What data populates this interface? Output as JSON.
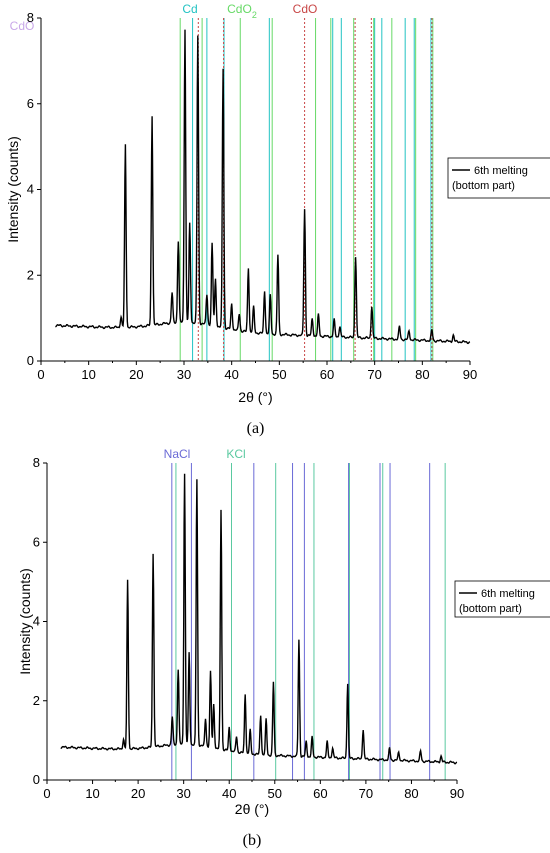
{
  "chart_data": [
    {
      "type": "line",
      "panel_label": "(a)",
      "xlabel": "2θ (°)",
      "ylabel": "Intensity (counts)",
      "xlim": [
        0,
        90
      ],
      "ylim": [
        0,
        8
      ],
      "xticks": [
        0,
        10,
        20,
        30,
        40,
        50,
        60,
        70,
        80,
        90
      ],
      "yticks": [
        0,
        2,
        4,
        6,
        8
      ],
      "legend": {
        "position": "right",
        "lines": [
          "6th melting",
          "(bottom part)"
        ]
      },
      "colors": {
        "series": "#000000",
        "Cd": "#22c3c3",
        "CdO2": "#66d966",
        "CdO": "#c84646",
        "CdO_partial": "#c9a8e8"
      },
      "reference_sets": [
        {
          "name": "Cd",
          "name_main": "Cd",
          "name_sub": "",
          "color": "#22c3c3",
          "dash": "solid",
          "positions": [
            31.8,
            34.8,
            38.4,
            47.9,
            61.2,
            63.0,
            70.0,
            71.5,
            76.4,
            78.3,
            81.8
          ]
        },
        {
          "name": "CdO2",
          "name_main": "CdO",
          "name_sub": "2",
          "color": "#66d966",
          "dash": "solid",
          "positions": [
            29.2,
            33.8,
            41.8,
            48.5,
            57.6,
            60.8,
            65.6,
            69.8,
            73.6,
            78.6,
            82.2
          ]
        },
        {
          "name": "CdO",
          "name_main": "CdO",
          "name_sub": "",
          "color": "#c84646",
          "dash": "dotted",
          "positions": [
            33.0,
            38.3,
            55.3,
            65.9,
            69.3,
            82.0
          ]
        },
        {
          "name": "CdO",
          "name_main": "CdO",
          "name_sub": "",
          "color": "#c9a8e8",
          "dash": "solid",
          "positions": []
        }
      ],
      "peaks": [
        [
          16.8,
          0.25
        ],
        [
          17.7,
          4.25
        ],
        [
          23.3,
          4.9
        ],
        [
          27.5,
          0.7
        ],
        [
          28.8,
          1.9
        ],
        [
          30.2,
          6.85
        ],
        [
          31.2,
          2.3
        ],
        [
          32.9,
          6.7
        ],
        [
          34.8,
          0.7
        ],
        [
          35.9,
          1.9
        ],
        [
          36.6,
          1.1
        ],
        [
          38.2,
          6.05
        ],
        [
          40.0,
          0.6
        ],
        [
          41.6,
          0.4
        ],
        [
          43.5,
          1.5
        ],
        [
          44.6,
          0.6
        ],
        [
          46.9,
          1.0
        ],
        [
          48.1,
          0.9
        ],
        [
          49.7,
          1.85
        ],
        [
          55.3,
          2.95
        ],
        [
          56.9,
          0.4
        ],
        [
          58.2,
          0.5
        ],
        [
          61.5,
          0.4
        ],
        [
          62.7,
          0.25
        ],
        [
          66.0,
          1.9
        ],
        [
          69.4,
          0.75
        ],
        [
          75.2,
          0.3
        ],
        [
          77.2,
          0.2
        ],
        [
          82.0,
          0.25
        ],
        [
          86.5,
          0.15
        ]
      ]
    },
    {
      "type": "line",
      "panel_label": "(b)",
      "xlabel": "2θ (°)",
      "ylabel": "Intensity (counts)",
      "xlim": [
        0,
        90
      ],
      "ylim": [
        0,
        8
      ],
      "xticks": [
        0,
        10,
        20,
        30,
        40,
        50,
        60,
        70,
        80,
        90
      ],
      "yticks": [
        0,
        2,
        4,
        6,
        8
      ],
      "legend": {
        "position": "right",
        "lines": [
          "6th melting",
          "(bottom part)"
        ]
      },
      "colors": {
        "series": "#000000",
        "NaCl": "#6a6ad6",
        "KCl": "#5ac9a0"
      },
      "reference_sets": [
        {
          "name": "NaCl",
          "name_main": "NaCl",
          "name_sub": "",
          "color": "#6a6ad6",
          "dash": "solid",
          "positions": [
            27.4,
            31.7,
            45.4,
            53.9,
            56.5,
            66.2,
            73.1,
            75.3,
            84.0
          ]
        },
        {
          "name": "KCl",
          "name_main": "KCl",
          "name_sub": "",
          "color": "#5ac9a0",
          "dash": "solid",
          "positions": [
            28.3,
            40.5,
            50.2,
            58.6,
            66.4,
            73.7,
            87.4
          ]
        }
      ],
      "peaks": [
        [
          16.8,
          0.25
        ],
        [
          17.7,
          4.25
        ],
        [
          23.3,
          4.9
        ],
        [
          27.5,
          0.7
        ],
        [
          28.8,
          1.9
        ],
        [
          30.2,
          6.85
        ],
        [
          31.2,
          2.3
        ],
        [
          32.9,
          6.7
        ],
        [
          34.8,
          0.7
        ],
        [
          35.9,
          1.9
        ],
        [
          36.6,
          1.1
        ],
        [
          38.2,
          6.05
        ],
        [
          40.0,
          0.6
        ],
        [
          41.6,
          0.4
        ],
        [
          43.5,
          1.5
        ],
        [
          44.6,
          0.6
        ],
        [
          46.9,
          1.0
        ],
        [
          48.1,
          0.9
        ],
        [
          49.7,
          1.85
        ],
        [
          55.3,
          2.95
        ],
        [
          56.9,
          0.4
        ],
        [
          58.2,
          0.5
        ],
        [
          61.5,
          0.4
        ],
        [
          62.7,
          0.25
        ],
        [
          66.0,
          1.9
        ],
        [
          69.4,
          0.75
        ],
        [
          75.2,
          0.3
        ],
        [
          77.2,
          0.2
        ],
        [
          82.0,
          0.25
        ],
        [
          86.5,
          0.15
        ]
      ]
    }
  ]
}
